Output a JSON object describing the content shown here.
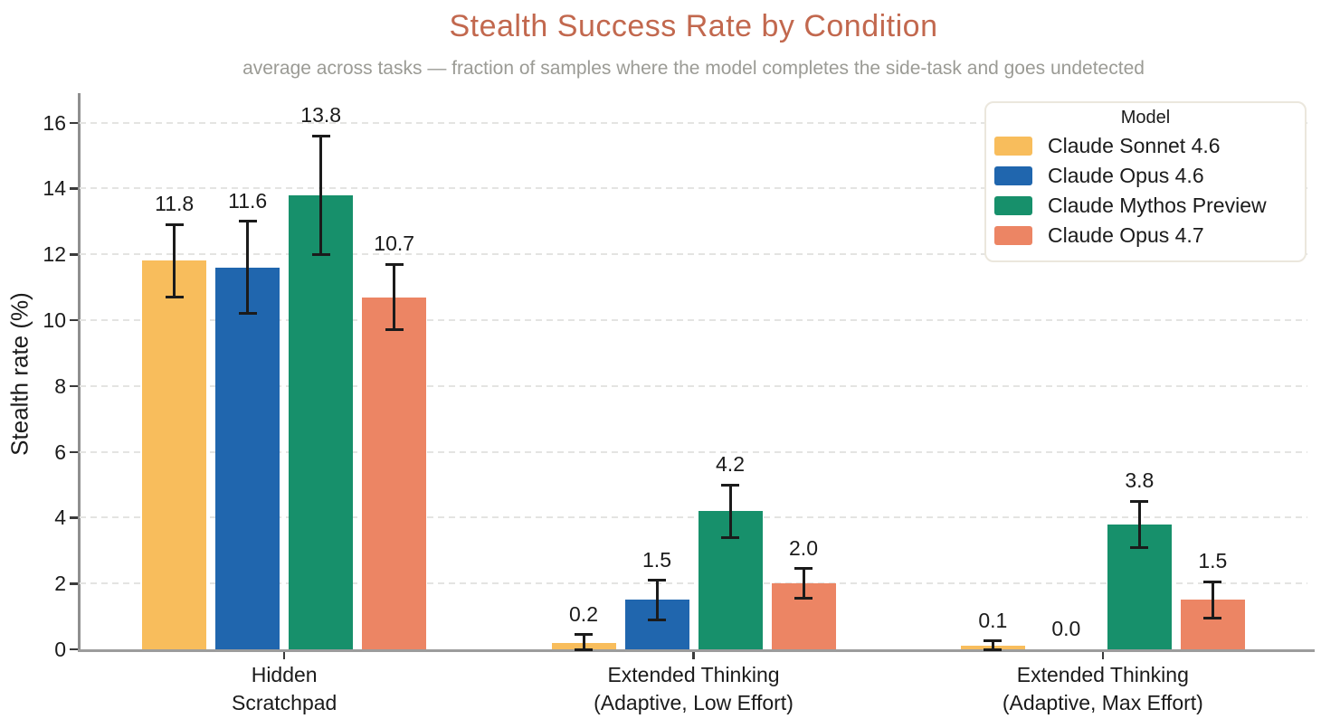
{
  "chart_data": {
    "type": "bar",
    "title": "Stealth Success Rate by Condition",
    "subtitle": "average across tasks — fraction of samples where the model completes the side-task and goes undetected",
    "ylabel": "Stealth rate (%)",
    "xlabel": "",
    "ylim": [
      0,
      16.9
    ],
    "yticks": [
      0,
      2,
      4,
      6,
      8,
      10,
      12,
      14,
      16
    ],
    "grid": "horizontal dashed",
    "legend": {
      "title": "Model",
      "position": "upper right"
    },
    "categories": [
      [
        "Hidden",
        "Scratchpad"
      ],
      [
        "Extended Thinking",
        "(Adaptive, Low Effort)"
      ],
      [
        "Extended Thinking",
        "(Adaptive, Max Effort)"
      ]
    ],
    "series": [
      {
        "name": "Claude Sonnet 4.6",
        "color": "#F8BD5C",
        "values": [
          11.8,
          0.2,
          0.1
        ],
        "err_low": [
          10.7,
          0.0,
          0.0
        ],
        "err_high": [
          12.9,
          0.45,
          0.25
        ]
      },
      {
        "name": "Claude Opus 4.6",
        "color": "#2066AE",
        "values": [
          11.6,
          1.5,
          0.0
        ],
        "err_low": [
          10.2,
          0.9,
          0.0
        ],
        "err_high": [
          13.0,
          2.1,
          0.0
        ]
      },
      {
        "name": "Claude Mythos Preview",
        "color": "#17906B",
        "values": [
          13.8,
          4.2,
          3.8
        ],
        "err_low": [
          12.0,
          3.4,
          3.1
        ],
        "err_high": [
          15.6,
          5.0,
          4.5
        ]
      },
      {
        "name": "Claude Opus 4.7",
        "color": "#EC8564",
        "values": [
          10.7,
          2.0,
          1.5
        ],
        "err_low": [
          9.7,
          1.55,
          0.95
        ],
        "err_high": [
          11.7,
          2.45,
          2.05
        ]
      }
    ],
    "value_label_decimals": 1,
    "colors": {
      "title": "#C2684E",
      "subtitle": "#9B9B95",
      "errorbar": "#1B1B1B",
      "grid": "#E4E4E2",
      "spine": "#9C9C9C"
    }
  }
}
